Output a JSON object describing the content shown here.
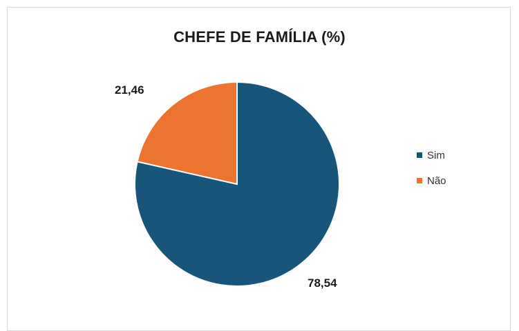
{
  "chart_data": {
    "type": "pie",
    "title": "CHEFE DE FAMÍLIA (%)",
    "categories": [
      "Sim",
      "Não"
    ],
    "values": [
      78.54,
      21.46
    ],
    "value_labels": [
      "78,54",
      "21,46"
    ],
    "colors": [
      "#17567a",
      "#ed7430"
    ],
    "legend": "right"
  }
}
